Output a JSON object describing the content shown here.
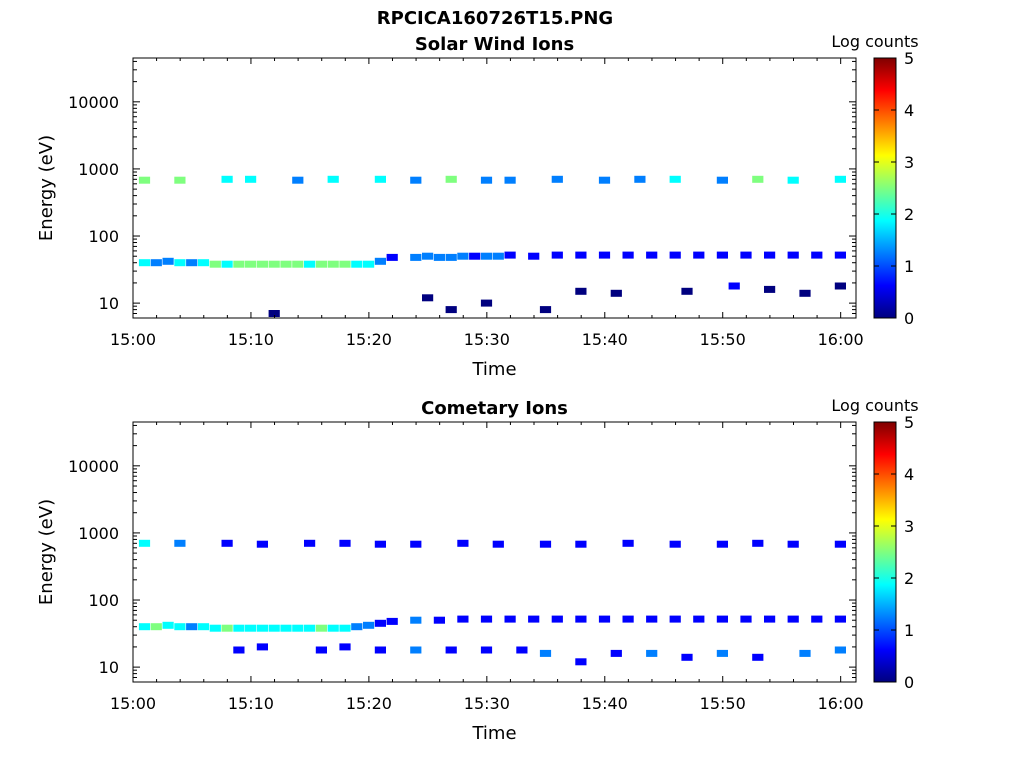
{
  "figure": {
    "title": "RPCICA160726T15.PNG"
  },
  "colors": {
    "colormap": [
      "#00007f",
      "#0000ff",
      "#007fff",
      "#00ffff",
      "#7fff7f",
      "#ffff00",
      "#ff7f00",
      "#ff0000",
      "#7f0000"
    ],
    "axis": "#000000"
  },
  "chart_data": [
    {
      "type": "heatmap",
      "title": "Solar Wind Ions",
      "xlabel": "Time",
      "ylabel": "Energy (eV)",
      "x_ticks": [
        "15:00",
        "15:10",
        "15:20",
        "15:30",
        "15:40",
        "15:50",
        "16:00"
      ],
      "y_ticks": [
        "10",
        "100",
        "1000",
        "10000"
      ],
      "y_scale": "log",
      "ylim": [
        6,
        45000
      ],
      "xlim_minutes": [
        0,
        61.3
      ],
      "colorbar": {
        "label": "Log counts",
        "ticks": [
          "0",
          "1",
          "2",
          "3",
          "4",
          "5"
        ],
        "range": [
          0,
          5
        ]
      },
      "cells": [
        [
          1,
          40,
          1.6
        ],
        [
          2,
          40,
          1.5
        ],
        [
          3,
          42,
          1.4
        ],
        [
          4,
          40,
          1.8
        ],
        [
          5,
          40,
          1.2
        ],
        [
          6,
          40,
          1.6
        ],
        [
          7,
          38,
          2.2
        ],
        [
          8,
          38,
          2.0
        ],
        [
          9,
          38,
          2.3
        ],
        [
          10,
          38,
          2.3
        ],
        [
          11,
          38,
          2.4
        ],
        [
          12,
          38,
          2.3
        ],
        [
          13,
          38,
          2.2
        ],
        [
          14,
          38,
          2.3
        ],
        [
          15,
          38,
          2.0
        ],
        [
          16,
          38,
          2.2
        ],
        [
          17,
          38,
          2.4
        ],
        [
          18,
          38,
          2.3
        ],
        [
          19,
          38,
          2.0
        ],
        [
          20,
          38,
          1.6
        ],
        [
          21,
          42,
          1.0
        ],
        [
          22,
          48,
          0.8
        ],
        [
          24,
          48,
          1.2
        ],
        [
          25,
          50,
          1.0
        ],
        [
          26,
          48,
          1.5
        ],
        [
          27,
          48,
          1.3
        ],
        [
          28,
          50,
          1.0
        ],
        [
          29,
          50,
          0.9
        ],
        [
          30,
          50,
          1.1
        ],
        [
          31,
          50,
          1.0
        ],
        [
          32,
          52,
          0.8
        ],
        [
          34,
          50,
          0.7
        ],
        [
          36,
          52,
          0.5
        ],
        [
          38,
          52,
          0.5
        ],
        [
          40,
          52,
          0.6
        ],
        [
          42,
          52,
          0.5
        ],
        [
          44,
          52,
          0.4
        ],
        [
          46,
          52,
          0.6
        ],
        [
          48,
          52,
          0.5
        ],
        [
          50,
          52,
          0.5
        ],
        [
          52,
          52,
          0.4
        ],
        [
          54,
          52,
          0.5
        ],
        [
          56,
          52,
          0.4
        ],
        [
          58,
          52,
          0.5
        ],
        [
          60,
          52,
          0.6
        ],
        [
          1,
          680,
          2.2
        ],
        [
          4,
          680,
          2.5
        ],
        [
          8,
          700,
          2.0
        ],
        [
          10,
          700,
          1.8
        ],
        [
          14,
          680,
          1.5
        ],
        [
          17,
          700,
          1.8
        ],
        [
          21,
          700,
          1.6
        ],
        [
          24,
          680,
          1.4
        ],
        [
          27,
          700,
          2.4
        ],
        [
          30,
          680,
          1.5
        ],
        [
          32,
          680,
          1.2
        ],
        [
          36,
          700,
          1.4
        ],
        [
          40,
          680,
          1.3
        ],
        [
          43,
          700,
          1.5
        ],
        [
          46,
          700,
          2.0
        ],
        [
          50,
          680,
          1.5
        ],
        [
          53,
          700,
          2.4
        ],
        [
          56,
          680,
          1.6
        ],
        [
          60,
          700,
          2.0
        ],
        [
          25,
          12,
          0.3
        ],
        [
          27,
          8,
          0.3
        ],
        [
          30,
          10,
          0.2
        ],
        [
          35,
          8,
          0.2
        ],
        [
          38,
          15,
          0.3
        ],
        [
          41,
          14,
          0.3
        ],
        [
          47,
          15,
          0.3
        ],
        [
          51,
          18,
          0.4
        ],
        [
          54,
          16,
          0.3
        ],
        [
          57,
          14,
          0.3
        ],
        [
          60,
          18,
          0.3
        ],
        [
          12,
          7,
          0.2
        ]
      ]
    },
    {
      "type": "heatmap",
      "title": "Cometary Ions",
      "xlabel": "Time",
      "ylabel": "Energy (eV)",
      "x_ticks": [
        "15:00",
        "15:10",
        "15:20",
        "15:30",
        "15:40",
        "15:50",
        "16:00"
      ],
      "y_ticks": [
        "10",
        "100",
        "1000",
        "10000"
      ],
      "y_scale": "log",
      "ylim": [
        6,
        45000
      ],
      "xlim_minutes": [
        0,
        61.3
      ],
      "colorbar": {
        "label": "Log counts",
        "ticks": [
          "0",
          "1",
          "2",
          "3",
          "4",
          "5"
        ],
        "range": [
          0,
          5
        ]
      },
      "cells": [
        [
          1,
          40,
          2.0
        ],
        [
          2,
          40,
          2.4
        ],
        [
          3,
          42,
          1.8
        ],
        [
          4,
          40,
          1.6
        ],
        [
          5,
          40,
          1.3
        ],
        [
          6,
          40,
          1.8
        ],
        [
          7,
          38,
          2.0
        ],
        [
          8,
          38,
          2.2
        ],
        [
          9,
          38,
          2.0
        ],
        [
          10,
          38,
          1.9
        ],
        [
          11,
          38,
          1.7
        ],
        [
          12,
          38,
          2.0
        ],
        [
          13,
          38,
          1.9
        ],
        [
          14,
          38,
          2.1
        ],
        [
          15,
          38,
          1.6
        ],
        [
          16,
          38,
          2.2
        ],
        [
          17,
          38,
          1.9
        ],
        [
          18,
          38,
          1.8
        ],
        [
          19,
          40,
          1.3
        ],
        [
          20,
          42,
          1.0
        ],
        [
          21,
          45,
          0.9
        ],
        [
          22,
          48,
          0.7
        ],
        [
          24,
          50,
          1.3
        ],
        [
          26,
          50,
          0.8
        ],
        [
          28,
          52,
          0.6
        ],
        [
          30,
          52,
          0.8
        ],
        [
          32,
          52,
          0.5
        ],
        [
          34,
          52,
          0.6
        ],
        [
          36,
          52,
          0.4
        ],
        [
          38,
          52,
          0.5
        ],
        [
          40,
          52,
          0.6
        ],
        [
          42,
          52,
          0.5
        ],
        [
          44,
          52,
          0.5
        ],
        [
          46,
          52,
          0.6
        ],
        [
          48,
          52,
          0.5
        ],
        [
          50,
          52,
          0.4
        ],
        [
          52,
          52,
          0.5
        ],
        [
          54,
          52,
          0.5
        ],
        [
          56,
          52,
          0.6
        ],
        [
          58,
          52,
          0.5
        ],
        [
          60,
          52,
          0.6
        ],
        [
          1,
          700,
          1.8
        ],
        [
          4,
          700,
          1.5
        ],
        [
          8,
          700,
          0.6
        ],
        [
          11,
          680,
          0.7
        ],
        [
          15,
          700,
          0.6
        ],
        [
          18,
          700,
          0.5
        ],
        [
          21,
          680,
          0.6
        ],
        [
          24,
          680,
          0.5
        ],
        [
          28,
          700,
          0.6
        ],
        [
          31,
          680,
          0.5
        ],
        [
          35,
          680,
          0.6
        ],
        [
          38,
          680,
          0.6
        ],
        [
          42,
          700,
          0.5
        ],
        [
          46,
          680,
          0.6
        ],
        [
          50,
          680,
          0.6
        ],
        [
          53,
          700,
          0.5
        ],
        [
          56,
          680,
          0.6
        ],
        [
          60,
          680,
          0.6
        ],
        [
          9,
          18,
          0.5
        ],
        [
          11,
          20,
          0.4
        ],
        [
          16,
          18,
          0.4
        ],
        [
          18,
          20,
          0.6
        ],
        [
          21,
          18,
          0.5
        ],
        [
          24,
          18,
          1.0
        ],
        [
          27,
          18,
          0.5
        ],
        [
          30,
          18,
          0.4
        ],
        [
          33,
          18,
          0.6
        ],
        [
          35,
          16,
          1.3
        ],
        [
          38,
          12,
          0.5
        ],
        [
          41,
          16,
          0.4
        ],
        [
          44,
          16,
          1.2
        ],
        [
          47,
          14,
          0.5
        ],
        [
          50,
          16,
          1.2
        ],
        [
          53,
          14,
          0.4
        ],
        [
          57,
          16,
          1.4
        ],
        [
          60,
          18,
          1.2
        ]
      ]
    }
  ]
}
